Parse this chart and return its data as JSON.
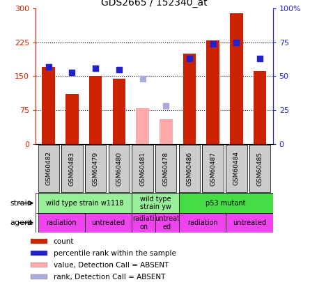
{
  "title": "GDS2665 / 152340_at",
  "samples": [
    "GSM60482",
    "GSM60483",
    "GSM60479",
    "GSM60480",
    "GSM60481",
    "GSM60478",
    "GSM60486",
    "GSM60487",
    "GSM60484",
    "GSM60485"
  ],
  "bar_values": [
    170,
    110,
    150,
    145,
    null,
    null,
    200,
    230,
    290,
    162
  ],
  "bar_absent_values": [
    null,
    null,
    null,
    null,
    80,
    55,
    null,
    null,
    null,
    null
  ],
  "rank_values": [
    57,
    53,
    56,
    55,
    null,
    null,
    63,
    74,
    75,
    63
  ],
  "rank_absent_values": [
    null,
    null,
    null,
    null,
    48,
    28,
    null,
    null,
    null,
    null
  ],
  "bar_color": "#cc2200",
  "bar_absent_color": "#ffaaaa",
  "rank_color": "#2222cc",
  "rank_absent_color": "#aaaadd",
  "ylim_left": [
    0,
    300
  ],
  "ylim_right": [
    0,
    100
  ],
  "yticks_left": [
    0,
    75,
    150,
    225,
    300
  ],
  "yticks_right": [
    0,
    25,
    50,
    75,
    100
  ],
  "ytick_labels_left": [
    "0",
    "75",
    "150",
    "225",
    "300"
  ],
  "ytick_labels_right": [
    "0",
    "25",
    "50",
    "75",
    "100%"
  ],
  "hlines": [
    75,
    150,
    225
  ],
  "strain_groups": [
    {
      "label": "wild type strain w1118",
      "start": 0,
      "end": 4,
      "color": "#99ee99"
    },
    {
      "label": "wild type\nstrain yw",
      "start": 4,
      "end": 6,
      "color": "#99ee99"
    },
    {
      "label": "p53 mutant",
      "start": 6,
      "end": 10,
      "color": "#44dd44"
    }
  ],
  "agent_groups": [
    {
      "label": "radiation",
      "start": 0,
      "end": 2,
      "color": "#ee44ee"
    },
    {
      "label": "untreated",
      "start": 2,
      "end": 4,
      "color": "#ee44ee"
    },
    {
      "label": "radiati\non",
      "start": 4,
      "end": 5,
      "color": "#ee44ee"
    },
    {
      "label": "untreat\ned",
      "start": 5,
      "end": 6,
      "color": "#ee44ee"
    },
    {
      "label": "radiation",
      "start": 6,
      "end": 8,
      "color": "#ee44ee"
    },
    {
      "label": "untreated",
      "start": 8,
      "end": 10,
      "color": "#ee44ee"
    }
  ],
  "legend_items": [
    {
      "label": "count",
      "color": "#cc2200"
    },
    {
      "label": "percentile rank within the sample",
      "color": "#2222cc"
    },
    {
      "label": "value, Detection Call = ABSENT",
      "color": "#ffaaaa"
    },
    {
      "label": "rank, Detection Call = ABSENT",
      "color": "#aaaadd"
    }
  ],
  "bar_width": 0.55,
  "fig_width": 4.45,
  "fig_height": 4.05,
  "sample_box_color": "#cccccc",
  "xlim": [
    -0.55,
    9.55
  ]
}
